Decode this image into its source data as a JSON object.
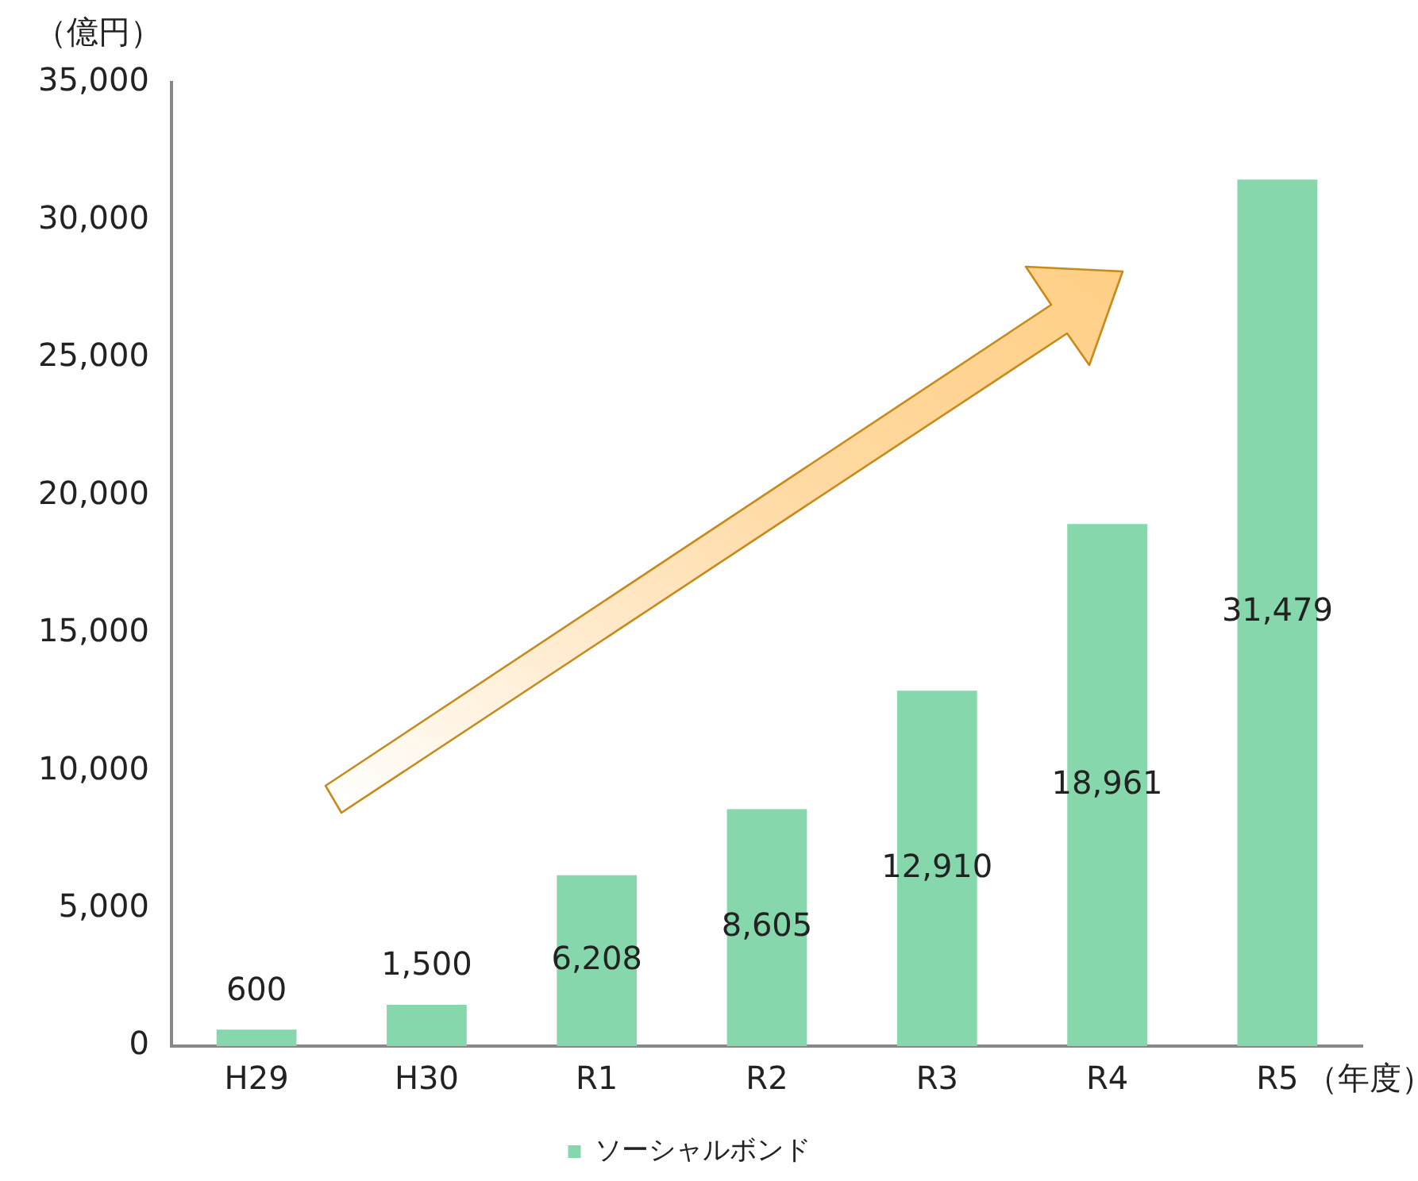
{
  "chart_data": {
    "type": "bar",
    "ylabel": "（億円）",
    "xlabel": "（年度）",
    "categories": [
      "H29",
      "H30",
      "R1",
      "R2",
      "R3",
      "R4",
      "R5"
    ],
    "series": [
      {
        "name": "ソーシャルボンド",
        "color": "#86d7ac",
        "values": [
          600,
          1500,
          6208,
          8605,
          12910,
          18961,
          31479
        ]
      }
    ],
    "value_labels": [
      "600",
      "1,500",
      "6,208",
      "8,605",
      "12,910",
      "18,961",
      "31,479"
    ],
    "ylim": [
      0,
      35000
    ],
    "yticks": [
      {
        "value": 0,
        "label": "0"
      },
      {
        "value": 5000,
        "label": "5,000"
      },
      {
        "value": 10000,
        "label": "10,000"
      },
      {
        "value": 15000,
        "label": "15,000"
      },
      {
        "value": 20000,
        "label": "20,000"
      },
      {
        "value": 25000,
        "label": "25,000"
      },
      {
        "value": 30000,
        "label": "30,000"
      },
      {
        "value": 35000,
        "label": "35,000"
      }
    ],
    "grid": false,
    "legend": "bottom"
  }
}
